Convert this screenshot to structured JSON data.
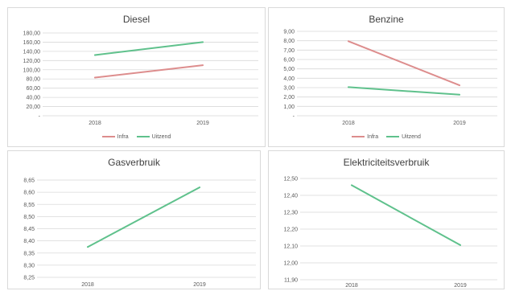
{
  "colors": {
    "infra": "#dd8d8d",
    "uitzend": "#5fc18c",
    "grid": "#d9d9d9",
    "text": "#595959"
  },
  "chart_data": [
    {
      "type": "line",
      "title": "Diesel",
      "categories": [
        "2018",
        "2019"
      ],
      "yticks": [
        "-",
        "20,00",
        "40,00",
        "60,00",
        "80,00",
        "100,00",
        "120,00",
        "140,00",
        "160,00",
        "180,00"
      ],
      "ylim": [
        0,
        180
      ],
      "grid": true,
      "legend": "bottom",
      "series": [
        {
          "name": "Infra",
          "color": "#dd8d8d",
          "values": [
            83,
            110
          ]
        },
        {
          "name": "Uitzend",
          "color": "#5fc18c",
          "values": [
            132,
            160
          ]
        }
      ]
    },
    {
      "type": "line",
      "title": "Benzine",
      "categories": [
        "2018",
        "2019"
      ],
      "yticks": [
        "-",
        "1,00",
        "2,00",
        "3,00",
        "4,00",
        "5,00",
        "6,00",
        "7,00",
        "8,00",
        "9,00"
      ],
      "ylim": [
        0,
        9
      ],
      "grid": true,
      "legend": "bottom",
      "series": [
        {
          "name": "Infra",
          "color": "#dd8d8d",
          "values": [
            7.95,
            3.25
          ]
        },
        {
          "name": "Uitzend",
          "color": "#5fc18c",
          "values": [
            3.05,
            2.25
          ]
        }
      ]
    },
    {
      "type": "line",
      "title": "Gasverbruik",
      "categories": [
        "2018",
        "2019"
      ],
      "yticks": [
        "8,25",
        "8,30",
        "8,35",
        "8,40",
        "8,45",
        "8,50",
        "8,55",
        "8,60",
        "8,65"
      ],
      "ylim": [
        8.25,
        8.65
      ],
      "grid": true,
      "series": [
        {
          "color": "#5fc18c",
          "values": [
            8.375,
            8.62
          ]
        }
      ]
    },
    {
      "type": "line",
      "title": "Elektriciteitsverbruik",
      "categories": [
        "2018",
        "2019"
      ],
      "yticks": [
        "11,90",
        "12,00",
        "12,10",
        "12,20",
        "12,30",
        "12,40",
        "12,50"
      ],
      "ylim": [
        11.9,
        12.5
      ],
      "grid": true,
      "series": [
        {
          "color": "#5fc18c",
          "values": [
            12.46,
            12.105
          ]
        }
      ]
    }
  ]
}
